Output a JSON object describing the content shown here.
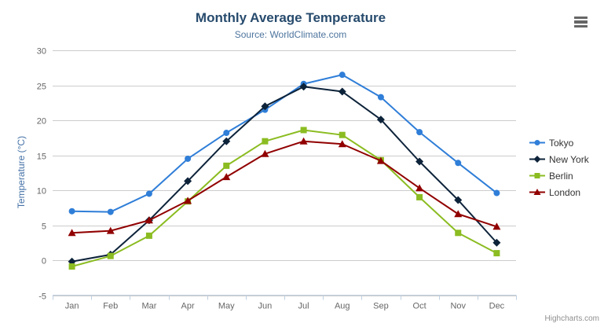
{
  "chart_data": {
    "type": "line",
    "title": "Monthly Average Temperature",
    "subtitle": "Source: WorldClimate.com",
    "xlabel": "",
    "ylabel": "Temperature (°C)",
    "ylim": [
      -5,
      30
    ],
    "ytick_interval": 5,
    "grid": true,
    "legend_position": "right",
    "categories": [
      "Jan",
      "Feb",
      "Mar",
      "Apr",
      "May",
      "Jun",
      "Jul",
      "Aug",
      "Sep",
      "Oct",
      "Nov",
      "Dec"
    ],
    "series": [
      {
        "name": "Tokyo",
        "color": "#2f7ed8",
        "marker": "circle",
        "values": [
          7.0,
          6.9,
          9.5,
          14.5,
          18.2,
          21.5,
          25.2,
          26.5,
          23.3,
          18.3,
          13.9,
          9.6
        ]
      },
      {
        "name": "New York",
        "color": "#0d233a",
        "marker": "diamond",
        "values": [
          -0.2,
          0.8,
          5.7,
          11.3,
          17.0,
          22.0,
          24.8,
          24.1,
          20.1,
          14.1,
          8.6,
          2.5
        ]
      },
      {
        "name": "Berlin",
        "color": "#8bbc21",
        "marker": "square",
        "values": [
          -0.9,
          0.6,
          3.5,
          8.4,
          13.5,
          17.0,
          18.6,
          17.9,
          14.3,
          9.0,
          3.9,
          1.0
        ]
      },
      {
        "name": "London",
        "color": "#910000",
        "marker": "triangle",
        "values": [
          3.9,
          4.2,
          5.7,
          8.5,
          11.9,
          15.2,
          17.0,
          16.6,
          14.2,
          10.3,
          6.6,
          4.8
        ]
      }
    ],
    "style": {
      "grid_color": "#cccccc",
      "axis_line_color": "#c0d0e0",
      "label_color": "#666666",
      "title_color": "#274b6d",
      "subtitle_color": "#4d759e",
      "y_title_color": "#4572a7",
      "legend_text_color": "#333333"
    }
  },
  "icons": {
    "context_menu": "hamburger-menu-icon"
  },
  "credits": {
    "label": "Highcharts.com"
  }
}
